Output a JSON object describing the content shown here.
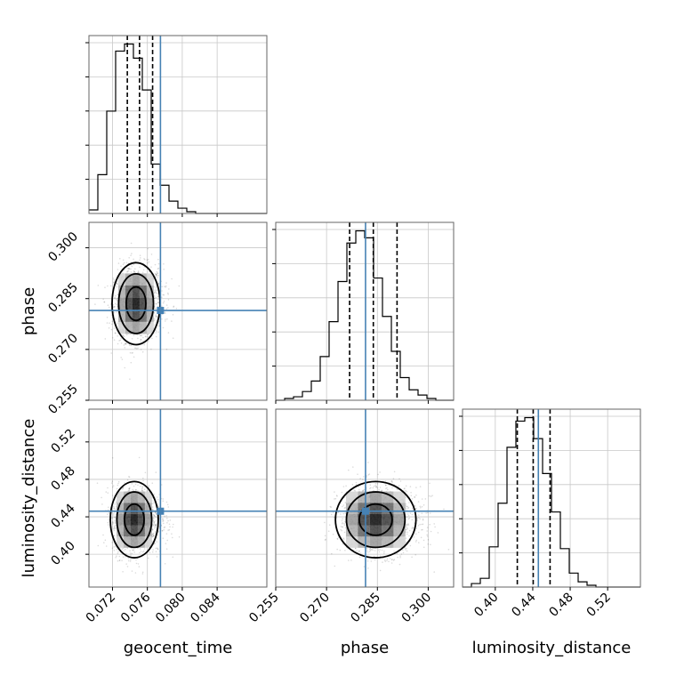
{
  "chart_data": {
    "type": "corner",
    "parameters": [
      "geocent_time",
      "phase",
      "luminosity_distance"
    ],
    "truths": {
      "geocent_time": 0.0775,
      "phase": 0.2815,
      "luminosity_distance": 0.446
    },
    "truth_color": "#4682b4",
    "grid": true,
    "axes": {
      "geocent_time": {
        "label": "geocent_time",
        "range": [
          0.0693,
          0.0897
        ],
        "ticks": [
          0.072,
          0.076,
          0.08,
          0.084
        ],
        "tick_labels": [
          "0.072",
          "0.076",
          "0.080",
          "0.084"
        ]
      },
      "phase": {
        "label": "phase",
        "range": [
          0.255,
          0.3075
        ],
        "ticks": [
          0.255,
          0.27,
          0.285,
          0.3
        ],
        "tick_labels": [
          "0.255",
          "0.270",
          "0.285",
          "0.300"
        ]
      },
      "luminosity_distance": {
        "label": "luminosity_distance",
        "range": [
          0.365,
          0.555
        ],
        "ticks": [
          0.4,
          0.44,
          0.48,
          0.52
        ],
        "tick_labels": [
          "0.40",
          "0.44",
          "0.48",
          "0.52"
        ]
      }
    },
    "histograms": {
      "geocent_time": {
        "bin_edges": [
          0.0693,
          0.07032,
          0.07134,
          0.07236,
          0.07338,
          0.0744,
          0.07542,
          0.07644,
          0.07746,
          0.07848,
          0.0795,
          0.08052,
          0.08154,
          0.08256,
          0.08358,
          0.0846,
          0.08562,
          0.08664,
          0.08766,
          0.08868,
          0.0897
        ],
        "counts": [
          2,
          22,
          58,
          92,
          96,
          88,
          70,
          28,
          16,
          7,
          3,
          1,
          0,
          0,
          0,
          0,
          0,
          0,
          0,
          0
        ],
        "quantiles": [
          0.0737,
          0.0751,
          0.0766
        ]
      },
      "phase": {
        "bin_edges": [
          0.255,
          0.25763,
          0.26025,
          0.26288,
          0.2655,
          0.26813,
          0.27075,
          0.27338,
          0.276,
          0.27863,
          0.28125,
          0.28388,
          0.2865,
          0.28913,
          0.29175,
          0.29438,
          0.297,
          0.29963,
          0.30225,
          0.30488,
          0.3075
        ],
        "counts": [
          0,
          1,
          2,
          5,
          11,
          25,
          45,
          68,
          90,
          97,
          93,
          70,
          48,
          28,
          13,
          6,
          3,
          1,
          0,
          0
        ],
        "quantiles": [
          0.2768,
          0.2838,
          0.2908
        ]
      },
      "luminosity_distance": {
        "bin_edges": [
          0.365,
          0.3745,
          0.384,
          0.3935,
          0.403,
          0.4125,
          0.422,
          0.4315,
          0.441,
          0.4505,
          0.46,
          0.4695,
          0.479,
          0.4885,
          0.498,
          0.5075,
          0.517,
          0.5265,
          0.536,
          0.5455,
          0.555
        ],
        "counts": [
          0,
          2,
          5,
          23,
          48,
          80,
          95,
          97,
          85,
          65,
          43,
          22,
          8,
          3,
          1,
          0,
          0,
          0,
          0,
          0
        ],
        "quantiles": [
          0.4235,
          0.4405,
          0.4585
        ]
      }
    },
    "joint": [
      {
        "x": "geocent_time",
        "y": "phase",
        "mean": [
          0.0747,
          0.2835
        ],
        "std": [
          0.00125,
          0.0055
        ],
        "corr": 0.05
      },
      {
        "x": "geocent_time",
        "y": "luminosity_distance",
        "mean": [
          0.0745,
          0.437
        ],
        "std": [
          0.00125,
          0.0185
        ],
        "corr": 0.0
      },
      {
        "x": "phase",
        "y": "luminosity_distance",
        "mean": [
          0.2845,
          0.437
        ],
        "std": [
          0.0054,
          0.0185
        ],
        "corr": 0.0
      }
    ],
    "contour_levels": [
      0.39,
      0.86,
      0.99
    ]
  }
}
